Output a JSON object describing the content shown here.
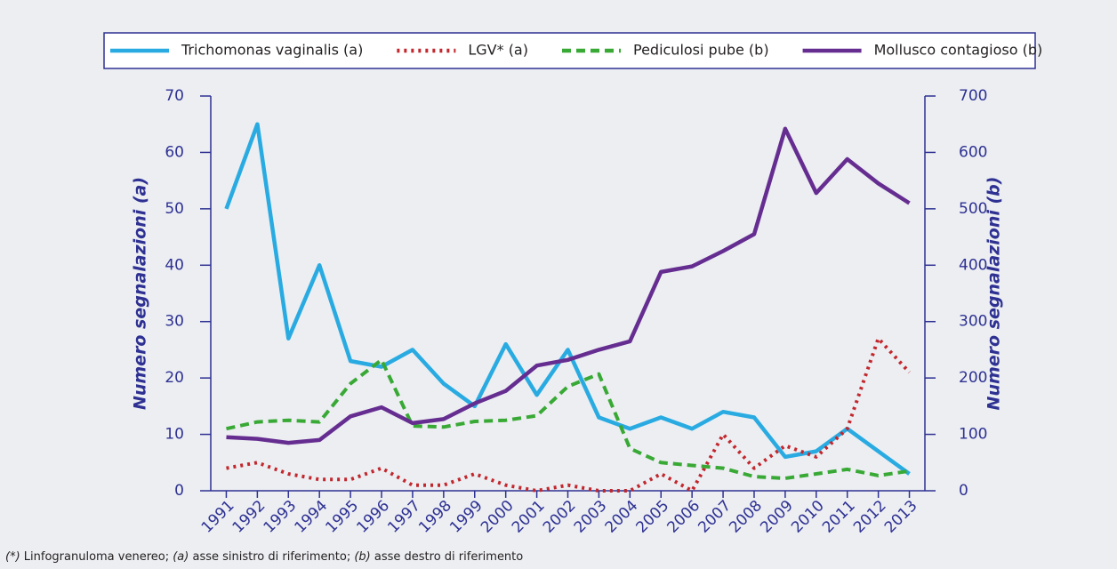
{
  "chart_data": {
    "type": "line",
    "categories": [
      "1991",
      "1992",
      "1993",
      "1994",
      "1995",
      "1996",
      "1997",
      "1998",
      "1999",
      "2000",
      "2001",
      "2002",
      "2003",
      "2004",
      "2005",
      "2006",
      "2007",
      "2008",
      "2009",
      "2010",
      "2011",
      "2012",
      "2013"
    ],
    "y_label": "Numero segnalazioni (a)",
    "y2_label": "Numero segnalazioni (b)",
    "ylim": [
      0,
      70
    ],
    "yticks": [
      0,
      10,
      20,
      30,
      40,
      50,
      60,
      70
    ],
    "y2lim": [
      0,
      700
    ],
    "y2ticks": [
      0,
      100,
      200,
      300,
      400,
      500,
      600,
      700
    ],
    "series": [
      {
        "name": "Trichomonas vaginalis (a)",
        "color": "#29abe2",
        "dash": "solid",
        "axis": "y",
        "values": [
          50,
          65,
          27,
          40,
          23,
          22,
          25,
          19,
          15,
          26,
          17,
          25,
          13,
          11,
          13,
          11,
          14,
          13,
          6,
          7,
          11,
          7,
          3
        ]
      },
      {
        "name": "LGV* (a)",
        "color": "#c1272d",
        "dash": "dotted",
        "axis": "y",
        "values": [
          4,
          5,
          3,
          2,
          2,
          4,
          1,
          1,
          3,
          1,
          0,
          1,
          0,
          0,
          3,
          0,
          10,
          4,
          8,
          6,
          11,
          27,
          21
        ]
      },
      {
        "name": "Pediculosi pube (b)",
        "color": "#39a935",
        "dash": "dashed",
        "axis": "y2",
        "values": [
          110,
          122,
          125,
          122,
          190,
          232,
          115,
          113,
          123,
          125,
          133,
          185,
          207,
          75,
          50,
          45,
          40,
          25,
          22,
          30,
          38,
          27,
          35
        ]
      },
      {
        "name": "Mollusco contagioso (b)",
        "color": "#662d91",
        "dash": "solid",
        "axis": "y2",
        "values": [
          95,
          92,
          85,
          90,
          132,
          148,
          120,
          127,
          155,
          177,
          222,
          232,
          250,
          265,
          388,
          398,
          425,
          455,
          642,
          528,
          588,
          545,
          510
        ]
      }
    ],
    "footnote": [
      {
        "text": "(*)",
        "italic": true
      },
      {
        "text": " Linfogranuloma venereo; ",
        "italic": false
      },
      {
        "text": "(a)",
        "italic": true
      },
      {
        "text": " asse sinistro di riferimento; ",
        "italic": false
      },
      {
        "text": "(b)",
        "italic": true
      },
      {
        "text": " asse destro di riferimento",
        "italic": false
      }
    ]
  }
}
